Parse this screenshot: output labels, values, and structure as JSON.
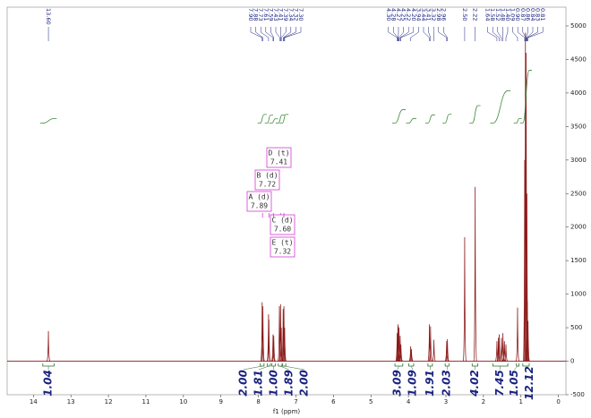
{
  "chart_data": {
    "type": "nmr",
    "x_label": "f1 (ppm)",
    "xlim": [
      14.7,
      -0.2
    ],
    "xticks": [
      14,
      13,
      12,
      11,
      10,
      9,
      8,
      7,
      6,
      5,
      4,
      3,
      2,
      1,
      0
    ],
    "ylim": [
      -500,
      5280
    ],
    "yticks": [
      -500,
      0,
      500,
      1000,
      1500,
      2000,
      2500,
      3000,
      3500,
      4000,
      4500,
      5000
    ],
    "color": "#8b1a1a",
    "peaks": {
      "x": [
        13.6,
        7.9,
        7.88,
        7.73,
        7.72,
        7.61,
        7.59,
        7.44,
        7.41,
        7.39,
        7.34,
        7.32,
        7.3,
        4.3,
        4.28,
        4.27,
        4.25,
        4.22,
        4.2,
        3.94,
        3.92,
        3.44,
        3.41,
        3.32,
        2.98,
        2.96,
        2.5,
        2.22,
        1.64,
        1.6,
        1.58,
        1.52,
        1.48,
        1.44,
        1.4,
        1.09,
        0.9,
        0.88,
        0.86,
        0.84,
        0.83,
        0.81
      ],
      "values": [
        450,
        880,
        820,
        700,
        620,
        400,
        380,
        820,
        850,
        500,
        780,
        820,
        500,
        420,
        550,
        520,
        500,
        380,
        250,
        220,
        180,
        550,
        520,
        320,
        300,
        330,
        1850,
        2600,
        300,
        350,
        400,
        350,
        420,
        300,
        250,
        800,
        3000,
        4900,
        4600,
        2500,
        900,
        600
      ]
    },
    "peak_labels": [
      {
        "value": 13.6,
        "label": "13.60"
      },
      {
        "value": 7.9,
        "label": "7.90"
      },
      {
        "value": 7.88,
        "label": "7.88"
      },
      {
        "value": 7.73,
        "label": "7.73"
      },
      {
        "value": 7.61,
        "label": "7.61"
      },
      {
        "value": 7.59,
        "label": "7.59"
      },
      {
        "value": 7.43,
        "label": "7.43"
      },
      {
        "value": 7.41,
        "label": "7.41"
      },
      {
        "value": 7.39,
        "label": "7.39"
      },
      {
        "value": 7.34,
        "label": "7.34"
      },
      {
        "value": 7.32,
        "label": "7.32"
      },
      {
        "value": 7.3,
        "label": "7.30"
      },
      {
        "value": 4.3,
        "label": "4.30"
      },
      {
        "value": 4.28,
        "label": "4.28"
      },
      {
        "value": 4.27,
        "label": "4.27"
      },
      {
        "value": 4.25,
        "label": "4.25"
      },
      {
        "value": 4.22,
        "label": "4.22"
      },
      {
        "value": 4.2,
        "label": "4.20"
      },
      {
        "value": 3.94,
        "label": "3.94"
      },
      {
        "value": 3.44,
        "label": "3.44"
      },
      {
        "value": 3.41,
        "label": "3.41"
      },
      {
        "value": 3.32,
        "label": "3.32"
      },
      {
        "value": 2.98,
        "label": "2.98"
      },
      {
        "value": 2.96,
        "label": "2.96"
      },
      {
        "value": 2.5,
        "label": "2.50"
      },
      {
        "value": 2.22,
        "label": "2.22"
      },
      {
        "value": 1.64,
        "label": "1.64"
      },
      {
        "value": 1.58,
        "label": "1.58"
      },
      {
        "value": 1.52,
        "label": "1.52"
      },
      {
        "value": 1.48,
        "label": "1.48"
      },
      {
        "value": 1.4,
        "label": "1.40"
      },
      {
        "value": 1.09,
        "label": "1.09"
      },
      {
        "value": 0.9,
        "label": "0.90"
      },
      {
        "value": 0.87,
        "label": "0.87"
      },
      {
        "value": 0.86,
        "label": "0.86"
      },
      {
        "value": 0.84,
        "label": "0.84"
      },
      {
        "value": 0.83,
        "label": "0.83"
      },
      {
        "value": 0.81,
        "label": "0.81"
      }
    ],
    "integrals": {
      "from": [
        13.75,
        7.95,
        7.76,
        7.64,
        7.47,
        7.36,
        4.36,
        3.99,
        3.48,
        3.02,
        2.3,
        1.75,
        0.95,
        1.12
      ],
      "to": [
        13.45,
        7.85,
        7.68,
        7.55,
        7.37,
        7.27,
        4.15,
        3.86,
        3.36,
        2.92,
        2.15,
        1.35,
        0.78,
        1.05
      ],
      "values": [
        1.04,
        2,
        1.81,
        1,
        1.89,
        2,
        3.09,
        1.09,
        1.91,
        2.03,
        4.02,
        7.45,
        12.12,
        1.05
      ],
      "value_labels": [
        "1.04",
        "2.00",
        "1.81",
        "1.00",
        "1.89",
        "2.00",
        "3.09",
        "1.09",
        "1.91",
        "2.03",
        "4.02",
        "7.45",
        "12.12",
        "1.05"
      ]
    },
    "multiplets": {
      "names": [
        "D (t)",
        "B (d)",
        "A (d)",
        "C (d)",
        "E (t)"
      ],
      "shifts": [
        7.41,
        7.72,
        7.89,
        7.6,
        7.32
      ],
      "shift_labels": [
        "7.41",
        "7.72",
        "7.89",
        "7.60",
        "7.32"
      ]
    }
  }
}
